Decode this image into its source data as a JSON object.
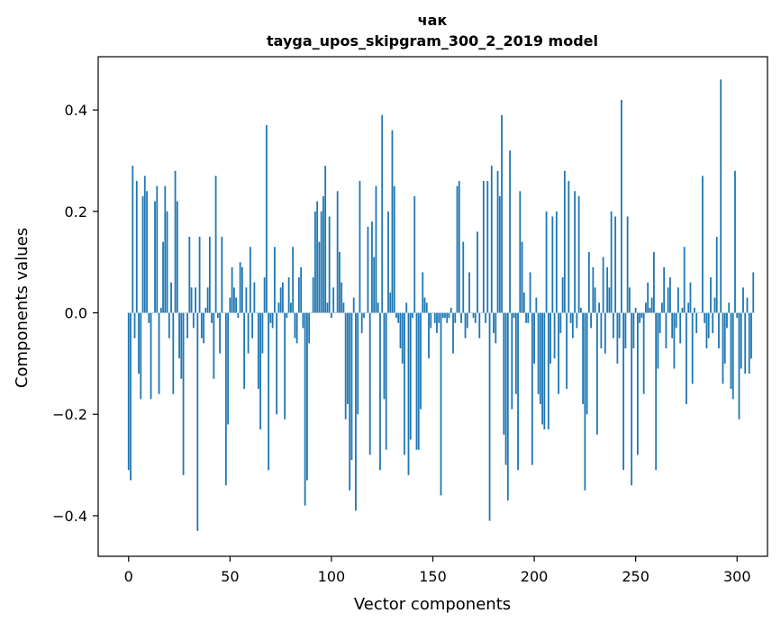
{
  "chart_data": {
    "type": "bar",
    "title_line1": "чак",
    "title_line2": "tayga_upos_skipgram_300_2_2019 model",
    "xlabel": "Vector components",
    "ylabel": "Components values",
    "xlim": [
      -15,
      315
    ],
    "ylim": [
      -0.48,
      0.505
    ],
    "xticks": [
      0,
      50,
      100,
      150,
      200,
      250,
      300
    ],
    "yticks": [
      -0.4,
      -0.2,
      0.0,
      0.2,
      0.4
    ],
    "xtick_labels": [
      "0",
      "50",
      "100",
      "150",
      "200",
      "250",
      "300"
    ],
    "ytick_labels": [
      "−0.4",
      "−0.2",
      "0.0",
      "0.2",
      "0.4"
    ],
    "bar_color": "#1f77b4",
    "values": [
      -0.31,
      -0.33,
      0.29,
      -0.05,
      0.26,
      -0.12,
      -0.17,
      0.23,
      0.27,
      0.24,
      -0.02,
      -0.17,
      0.0,
      0.22,
      0.25,
      -0.16,
      0.01,
      0.14,
      0.25,
      0.2,
      -0.05,
      0.06,
      -0.16,
      0.28,
      0.22,
      -0.09,
      -0.13,
      -0.32,
      0.0,
      -0.05,
      0.15,
      0.05,
      -0.03,
      0.05,
      -0.43,
      0.15,
      -0.05,
      -0.06,
      0.01,
      0.05,
      0.15,
      -0.02,
      -0.13,
      0.27,
      -0.01,
      -0.08,
      0.15,
      0.0,
      -0.34,
      -0.22,
      0.03,
      0.09,
      0.05,
      0.03,
      -0.01,
      0.1,
      0.09,
      -0.15,
      0.05,
      -0.08,
      0.13,
      -0.05,
      0.06,
      0.0,
      -0.15,
      -0.23,
      -0.08,
      0.07,
      0.37,
      -0.31,
      -0.02,
      -0.03,
      0.13,
      -0.2,
      0.02,
      0.05,
      0.06,
      -0.21,
      -0.01,
      0.07,
      0.02,
      0.13,
      -0.05,
      -0.06,
      0.07,
      0.09,
      -0.03,
      -0.38,
      -0.33,
      -0.06,
      0.0,
      0.07,
      0.2,
      0.22,
      0.14,
      0.2,
      0.23,
      0.29,
      0.02,
      0.19,
      -0.01,
      0.05,
      0.0,
      0.24,
      0.12,
      0.06,
      0.02,
      -0.21,
      -0.18,
      -0.35,
      -0.29,
      0.03,
      -0.39,
      -0.2,
      0.26,
      -0.04,
      -0.01,
      0.0,
      0.17,
      -0.28,
      0.18,
      0.11,
      0.25,
      0.02,
      -0.31,
      0.39,
      -0.17,
      -0.27,
      0.2,
      0.04,
      0.36,
      0.25,
      -0.01,
      -0.02,
      -0.07,
      -0.1,
      -0.28,
      0.02,
      -0.32,
      -0.25,
      -0.01,
      0.23,
      -0.27,
      -0.27,
      -0.19,
      0.08,
      0.03,
      0.02,
      -0.09,
      -0.03,
      0.0,
      -0.02,
      -0.04,
      -0.02,
      -0.36,
      -0.01,
      -0.01,
      -0.02,
      -0.01,
      0.01,
      -0.08,
      -0.02,
      0.25,
      0.26,
      -0.02,
      0.14,
      -0.05,
      -0.03,
      0.08,
      0.0,
      -0.01,
      -0.02,
      0.16,
      -0.05,
      0.0,
      0.26,
      -0.02,
      0.26,
      -0.41,
      0.29,
      -0.04,
      -0.06,
      0.28,
      0.23,
      0.39,
      -0.24,
      -0.3,
      -0.37,
      0.32,
      -0.19,
      -0.01,
      -0.16,
      -0.31,
      0.24,
      0.14,
      0.04,
      -0.02,
      -0.02,
      0.08,
      -0.3,
      -0.1,
      0.03,
      -0.16,
      -0.18,
      -0.22,
      -0.23,
      0.2,
      -0.23,
      -0.1,
      0.19,
      -0.09,
      0.2,
      -0.16,
      -0.04,
      0.07,
      0.28,
      -0.15,
      0.26,
      -0.02,
      -0.05,
      0.24,
      -0.03,
      0.23,
      0.01,
      -0.18,
      -0.35,
      -0.2,
      0.12,
      -0.03,
      0.09,
      0.05,
      -0.24,
      0.02,
      -0.07,
      0.11,
      -0.08,
      0.09,
      0.05,
      0.2,
      -0.05,
      0.19,
      -0.1,
      -0.05,
      0.42,
      -0.31,
      -0.07,
      0.19,
      0.05,
      -0.34,
      -0.07,
      0.01,
      -0.28,
      -0.02,
      -0.01,
      -0.16,
      0.02,
      0.06,
      0.01,
      0.03,
      0.12,
      -0.31,
      -0.11,
      -0.04,
      0.02,
      0.09,
      -0.07,
      0.05,
      0.07,
      -0.05,
      -0.11,
      -0.03,
      0.05,
      -0.06,
      0.01,
      0.13,
      -0.18,
      0.02,
      0.06,
      -0.14,
      0.01,
      -0.04,
      0.0,
      0.0,
      0.27,
      -0.02,
      -0.07,
      -0.05,
      0.07,
      -0.04,
      0.03,
      0.15,
      -0.07,
      0.46,
      -0.14,
      -0.1,
      -0.03,
      0.02,
      -0.15,
      -0.17,
      0.28,
      -0.01,
      -0.21,
      -0.11,
      0.05,
      -0.12,
      0.03,
      -0.12,
      -0.09,
      0.08
    ]
  }
}
